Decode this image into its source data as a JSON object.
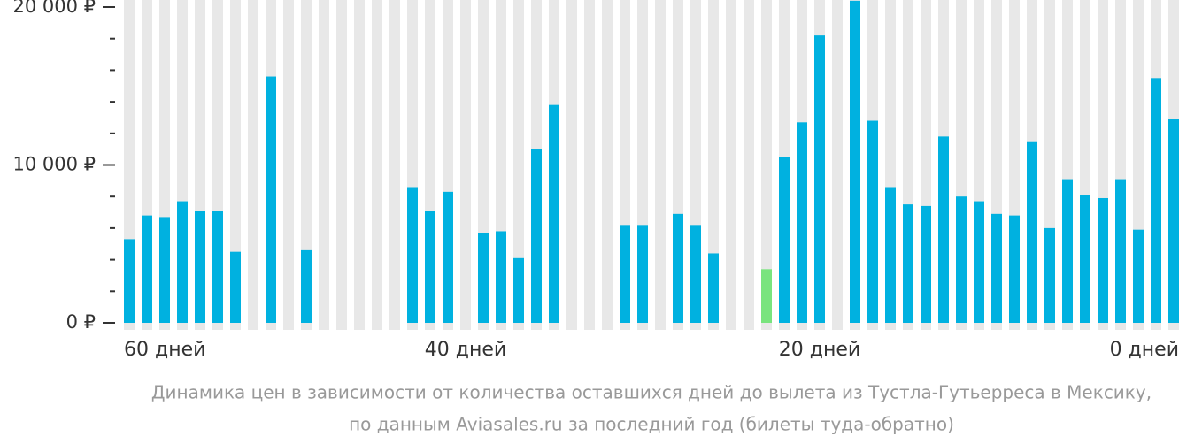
{
  "chart_data": {
    "type": "bar",
    "categories": [
      "60 дней",
      null,
      null,
      null,
      null,
      null,
      null,
      null,
      null,
      null,
      null,
      null,
      null,
      null,
      null,
      null,
      null,
      null,
      null,
      "40 дней",
      null,
      null,
      null,
      null,
      null,
      null,
      null,
      null,
      null,
      null,
      null,
      null,
      null,
      null,
      null,
      null,
      null,
      null,
      null,
      "20 дней",
      null,
      null,
      null,
      null,
      null,
      null,
      null,
      null,
      null,
      null,
      null,
      null,
      null,
      null,
      null,
      null,
      null,
      null,
      null,
      "0 дней"
    ],
    "values": [
      5300,
      6800,
      6700,
      7700,
      7100,
      7100,
      4500,
      null,
      15600,
      null,
      4600,
      null,
      null,
      null,
      null,
      null,
      8600,
      7100,
      8300,
      null,
      5700,
      5800,
      4100,
      11000,
      13800,
      null,
      null,
      null,
      6200,
      6200,
      null,
      6900,
      6200,
      4400,
      null,
      null,
      3400,
      10500,
      12700,
      18200,
      null,
      20400,
      12800,
      8600,
      7500,
      7400,
      11800,
      8000,
      7700,
      6900,
      6800,
      11500,
      6000,
      9100,
      8100,
      7900,
      9100,
      5900,
      15500,
      12900
    ],
    "color": "#00b1e0",
    "highlight": {
      "index": 36,
      "color": "#79e47e"
    },
    "ylim": [
      0,
      20000
    ],
    "yticks": [
      {
        "value": 0,
        "label": "0 ₽"
      },
      {
        "value": 10000,
        "label": "10 000 ₽"
      },
      {
        "value": 20000,
        "label": "20 000 ₽"
      }
    ],
    "minor_yticks": [
      2000,
      4000,
      6000,
      8000,
      12000,
      14000,
      16000,
      18000
    ],
    "caption": [
      "Динамика цен в зависимости от количества оставшихся дней до вылета из Тустла-Гутьерреса в Мексику,",
      "по данным Aviasales.ru за последний год (билеты туда-обратно)"
    ]
  }
}
